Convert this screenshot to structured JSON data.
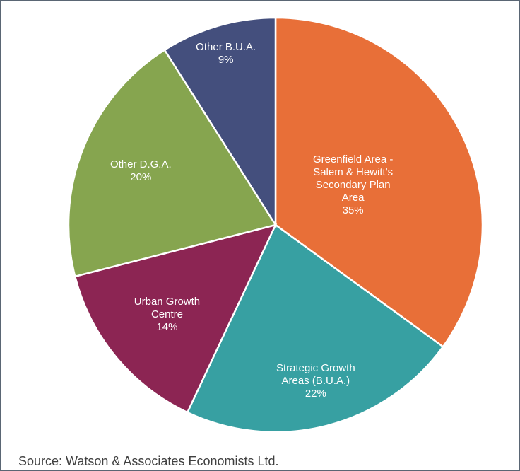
{
  "chart_data": {
    "type": "pie",
    "categories": [
      "Greenfield Area - Salem & Hewitt's Secondary Plan Area",
      "Strategic Growth Areas (B.U.A.)",
      "Urban Growth Centre",
      "Other D.G.A.",
      "Other B.U.A."
    ],
    "values": [
      35,
      22,
      14,
      20,
      9
    ],
    "value_labels": [
      "35%",
      "22%",
      "14%",
      "20%",
      "9%"
    ],
    "colors": [
      "#e86f38",
      "#37a0a2",
      "#8c2553",
      "#86a54f",
      "#444f7d"
    ],
    "source": "Source: Watson & Associates Economists Ltd."
  }
}
